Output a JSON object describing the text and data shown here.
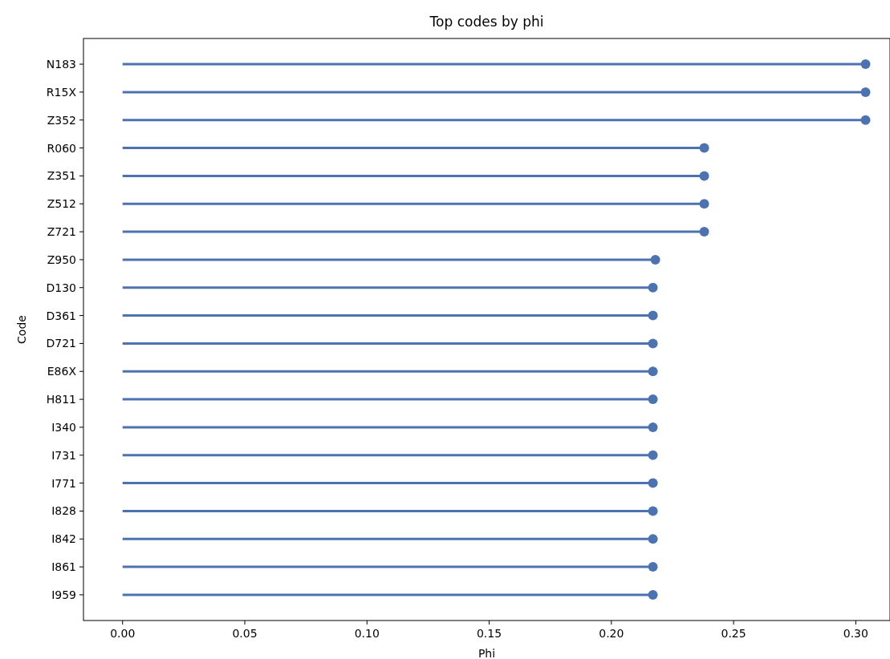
{
  "chart_data": {
    "type": "lollipop",
    "orientation": "horizontal",
    "title": "Top codes by phi",
    "xlabel": "Phi",
    "ylabel": "Code",
    "categories": [
      "N183",
      "R15X",
      "Z352",
      "R060",
      "Z351",
      "Z512",
      "Z721",
      "Z950",
      "D130",
      "D361",
      "D721",
      "E86X",
      "H811",
      "I340",
      "I731",
      "I771",
      "I828",
      "I842",
      "I861",
      "I959"
    ],
    "values": [
      0.304,
      0.304,
      0.304,
      0.238,
      0.238,
      0.238,
      0.238,
      0.218,
      0.217,
      0.217,
      0.217,
      0.217,
      0.217,
      0.217,
      0.217,
      0.217,
      0.217,
      0.217,
      0.217,
      0.217
    ],
    "color": "#4c72b0",
    "marker": "circle",
    "xlim": [
      -0.016,
      0.314
    ],
    "xticks": [
      {
        "value": 0,
        "label": "0.00"
      },
      {
        "value": 0.05,
        "label": "0.05"
      },
      {
        "value": 0.1,
        "label": "0.10"
      },
      {
        "value": 0.15,
        "label": "0.15"
      },
      {
        "value": 0.2,
        "label": "0.20"
      },
      {
        "value": 0.25,
        "label": "0.25"
      },
      {
        "value": 0.3,
        "label": "0.30"
      }
    ],
    "grid": false
  }
}
